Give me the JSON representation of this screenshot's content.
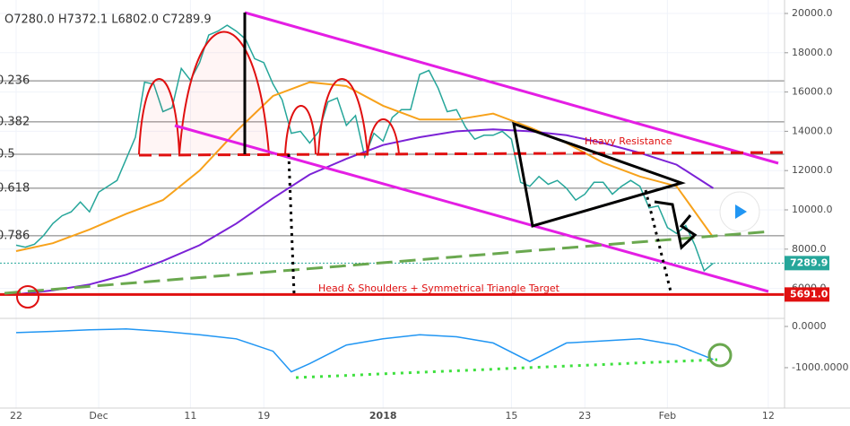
{
  "chart_data": [
    {
      "type": "line",
      "header": "O7280.0 H7372.1 L6802.0 C7289.9",
      "xlim": [
        -1.76,
        83.77
      ],
      "xticks": [
        {
          "value": 0,
          "label": "22"
        },
        {
          "value": 9,
          "label": "Dec"
        },
        {
          "value": 19,
          "label": "11"
        },
        {
          "value": 27,
          "label": "19"
        },
        {
          "value": 40,
          "label": "2018"
        },
        {
          "value": 54,
          "label": "15"
        },
        {
          "value": 62,
          "label": "23"
        },
        {
          "value": 71,
          "label": "Feb"
        },
        {
          "value": 82,
          "label": "12"
        }
      ],
      "ylim": [
        4475,
        20685
      ],
      "yticks": [
        {
          "value": 20000,
          "label": "20000.0"
        },
        {
          "value": 18000,
          "label": "18000.0"
        },
        {
          "value": 16000,
          "label": "16000.0"
        },
        {
          "value": 14000,
          "label": "14000.0"
        },
        {
          "value": 12000,
          "label": "12000.0"
        },
        {
          "value": 10000,
          "label": "10000.0"
        },
        {
          "value": 8000,
          "label": "8000.0"
        },
        {
          "value": 6000,
          "label": "6000.0"
        }
      ],
      "grid": true,
      "fib_levels": [
        {
          "value": 16570,
          "label": "0.236"
        },
        {
          "value": 14480,
          "label": "0.382"
        },
        {
          "value": 12830,
          "label": "0.5"
        },
        {
          "value": 11100,
          "label": "0.618"
        },
        {
          "value": 8680,
          "label": "0.786"
        }
      ],
      "series": [
        {
          "color": "#26a69a",
          "x": [
            0,
            1,
            2,
            3,
            4,
            5,
            6,
            7,
            8,
            9,
            10,
            11,
            12,
            13,
            14,
            15,
            16,
            17,
            18,
            19,
            20,
            21,
            22,
            23,
            24,
            25,
            26,
            27,
            28,
            29,
            30,
            31,
            32,
            33,
            34,
            35,
            36,
            37,
            38,
            39,
            40,
            41,
            42,
            43,
            44,
            45,
            46,
            47,
            48,
            49,
            50,
            51,
            52,
            53,
            54,
            55,
            56,
            57,
            58,
            59,
            60,
            61,
            62,
            63,
            64,
            65,
            66,
            67,
            68,
            69,
            70,
            71,
            72,
            73,
            74,
            75,
            76
          ],
          "values": [
            8200,
            8100,
            8250,
            8700,
            9300,
            9700,
            9900,
            10400,
            9900,
            10900,
            11200,
            11500,
            12600,
            13700,
            16500,
            16400,
            15000,
            15200,
            17200,
            16600,
            17500,
            18900,
            19100,
            19400,
            19100,
            18700,
            17700,
            17500,
            16400,
            15600,
            13900,
            14000,
            13400,
            14000,
            15500,
            15700,
            14300,
            14800,
            12700,
            13900,
            13500,
            14700,
            15100,
            15100,
            16900,
            17100,
            16200,
            15000,
            15100,
            14200,
            13600,
            13800,
            13800,
            14000,
            13600,
            11400,
            11200,
            11700,
            11300,
            11500,
            11100,
            10500,
            10800,
            11400,
            11400,
            10800,
            11200,
            11500,
            11200,
            10100,
            10200,
            9100,
            8800,
            9200,
            8200,
            6900,
            7290
          ]
        },
        {
          "color": "#f7a21b",
          "x": [
            0,
            4,
            8,
            12,
            16,
            20,
            24,
            28,
            32,
            36,
            40,
            44,
            48,
            52,
            56,
            60,
            64,
            68,
            72,
            76
          ],
          "values": [
            7900,
            8300,
            9000,
            9800,
            10500,
            12000,
            14000,
            15800,
            16500,
            16300,
            15300,
            14600,
            14600,
            14900,
            14200,
            13400,
            12400,
            11700,
            11200,
            8600
          ]
        },
        {
          "color": "#7b22d6",
          "x": [
            0,
            4,
            8,
            12,
            16,
            20,
            24,
            28,
            32,
            36,
            40,
            44,
            48,
            52,
            56,
            60,
            64,
            68,
            72,
            76
          ],
          "values": [
            5700,
            5900,
            6200,
            6700,
            7400,
            8200,
            9300,
            10600,
            11800,
            12600,
            13300,
            13700,
            14000,
            14100,
            14000,
            13800,
            13400,
            12900,
            12300,
            11100
          ]
        }
      ],
      "last_price": 7289.9,
      "target": {
        "value": 5691,
        "label": "5691.0"
      },
      "annotations": [
        "Heavy Resistance",
        "Head & Shoulders + Symmetrical Triangle Target"
      ]
    },
    {
      "type": "line",
      "xlim": [
        -1.76,
        83.77
      ],
      "ylim": [
        -1980,
        196
      ],
      "yticks": [
        {
          "value": 0,
          "label": "0.0000"
        },
        {
          "value": -1000,
          "label": "-1000.0000"
        }
      ],
      "series": [
        {
          "color": "#2196f3",
          "x": [
            0,
            4,
            8,
            12,
            16,
            20,
            24,
            28,
            30,
            32,
            36,
            40,
            44,
            48,
            52,
            56,
            60,
            64,
            68,
            72,
            76
          ],
          "values": [
            -150,
            -120,
            -80,
            -60,
            -120,
            -200,
            -300,
            -600,
            -1100,
            -900,
            -450,
            -300,
            -200,
            -250,
            -400,
            -850,
            -400,
            -350,
            -300,
            -450,
            -800
          ]
        }
      ]
    }
  ]
}
